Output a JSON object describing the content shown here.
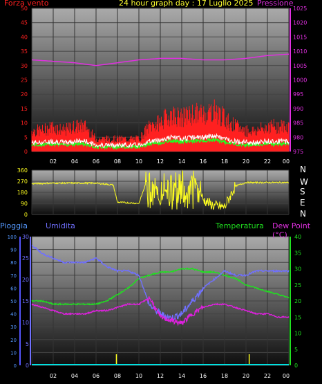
{
  "header": {
    "wind_label": "Forza vento",
    "title": "24 hour graph day : 17 Luglio 2025",
    "pressure_label": "Pressione"
  },
  "dir_labels": [
    "N",
    "W",
    "S",
    "E",
    "N"
  ],
  "lower_header": {
    "rain_label": "Pioggia",
    "humidity_label": "Umidita",
    "temperature_label": "Temperatura",
    "dewpoint_label": "Dew Point (°C)"
  },
  "colors": {
    "wind": "#ff2020",
    "wind_gust": "#ff0000",
    "wind_avg": "#ffffff",
    "wind_low": "#20ff20",
    "pressure": "#e030e0",
    "direction": "#ffff20",
    "humidity": "#7070ff",
    "temperature": "#20e020",
    "dewpoint": "#e020e0",
    "rain": "#00e0e0",
    "rain_axis": "#5555ff"
  },
  "chart_data": [
    {
      "type": "line",
      "name": "wind_pressure",
      "x_ticks": [
        "02",
        "04",
        "06",
        "08",
        "10",
        "12",
        "14",
        "16",
        "18",
        "20",
        "22",
        "00"
      ],
      "left_axis": {
        "ticks": [
          "0",
          "5",
          "10",
          "15",
          "20",
          "25",
          "30",
          "35",
          "40",
          "45",
          "50"
        ],
        "ylim": [
          0,
          50
        ]
      },
      "right_axis": {
        "ticks": [
          "975",
          "980",
          "985",
          "990",
          "995",
          "1000",
          "1005",
          "1010",
          "1015",
          "1020",
          "1025"
        ],
        "ylim": [
          975,
          1025
        ]
      },
      "series": [
        {
          "key": "wind",
          "x": [
            0,
            1,
            2,
            3,
            4,
            5,
            6,
            7,
            8,
            9,
            10,
            11,
            12,
            13,
            14,
            15,
            16,
            17,
            18,
            19,
            20,
            21,
            22,
            23,
            24
          ],
          "values": [
            5,
            5,
            6,
            5,
            6,
            6,
            3,
            3,
            3,
            3,
            3,
            6,
            7,
            9,
            8,
            9,
            9,
            10,
            8,
            6,
            5,
            5,
            6,
            6,
            6
          ]
        },
        {
          "key": "pressure",
          "x": [
            0,
            2,
            4,
            6,
            8,
            10,
            12,
            14,
            16,
            18,
            20,
            22,
            24
          ],
          "values": [
            1007,
            1006.5,
            1006,
            1005,
            1006,
            1007,
            1007.5,
            1007.5,
            1007,
            1007,
            1007.5,
            1008.5,
            1009
          ]
        }
      ]
    },
    {
      "type": "line",
      "name": "wind_direction",
      "x_ticks": [
        "02",
        "04",
        "06",
        "08",
        "10",
        "12",
        "14",
        "16",
        "18",
        "20",
        "22",
        "00"
      ],
      "left_axis": {
        "ticks": [
          "0",
          "90",
          "180",
          "270",
          "360"
        ],
        "ylim": [
          0,
          360
        ]
      },
      "series": [
        {
          "key": "direction",
          "x": [
            0,
            2,
            4,
            6,
            7.6,
            8,
            10,
            11,
            12,
            13,
            14,
            15,
            16,
            17,
            18,
            19,
            20,
            22,
            24
          ],
          "values": [
            250,
            255,
            255,
            255,
            240,
            100,
            90,
            340,
            80,
            320,
            60,
            330,
            120,
            70,
            60,
            230,
            260,
            260,
            260
          ]
        }
      ]
    },
    {
      "type": "line",
      "name": "rain_humidity_temp_dew",
      "x_ticks": [
        "02",
        "04",
        "06",
        "08",
        "10",
        "12",
        "14",
        "16",
        "18",
        "20",
        "22",
        "00"
      ],
      "rain_axis": {
        "ticks": [
          "0",
          "10",
          "20",
          "30",
          "40",
          "50",
          "60",
          "70",
          "80",
          "90",
          "100"
        ],
        "ylim": [
          0,
          100
        ]
      },
      "humidity_axis": {
        "ticks": [
          "0",
          "5",
          "10",
          "15",
          "20",
          "25",
          "30"
        ],
        "ylim": [
          0,
          30
        ]
      },
      "temperature_axis": {
        "ticks": [
          "0",
          "5",
          "10",
          "15",
          "20",
          "25",
          "30",
          "35",
          "40"
        ],
        "ylim": [
          0,
          40
        ]
      },
      "series": [
        {
          "key": "humidity",
          "axis": "humidity_axis",
          "x": [
            0,
            1,
            2,
            3,
            4,
            5,
            6,
            7,
            8,
            9,
            10,
            11,
            12,
            13,
            14,
            15,
            16,
            17,
            18,
            19,
            20,
            21,
            22,
            23,
            24
          ],
          "values": [
            28,
            26,
            25,
            24,
            24,
            24,
            25,
            23,
            22,
            22,
            21,
            14,
            12,
            11,
            12,
            15,
            18,
            20,
            22,
            21,
            21,
            22,
            22,
            22,
            22
          ]
        },
        {
          "key": "temperature",
          "axis": "temperature_axis",
          "x": [
            0,
            1,
            2,
            3,
            4,
            5,
            6,
            7,
            8,
            9,
            10,
            11,
            12,
            13,
            14,
            15,
            16,
            17,
            18,
            19,
            20,
            21,
            22,
            23,
            24
          ],
          "values": [
            20,
            20,
            19,
            19,
            19,
            19,
            19,
            20,
            22,
            24,
            27,
            28,
            29,
            29,
            30,
            30,
            29,
            29,
            28,
            27,
            25,
            24,
            23,
            22,
            21
          ]
        },
        {
          "key": "dewpoint",
          "axis": "temperature_axis",
          "x": [
            0,
            1,
            2,
            3,
            4,
            5,
            6,
            7,
            8,
            9,
            10,
            11,
            12,
            13,
            14,
            15,
            16,
            17,
            18,
            19,
            20,
            21,
            22,
            23,
            24
          ],
          "values": [
            19,
            18,
            17,
            16,
            16,
            16,
            17,
            17,
            18,
            19,
            19,
            21,
            15,
            14,
            13,
            16,
            18,
            19,
            19,
            18,
            17,
            16,
            16,
            15,
            15
          ]
        },
        {
          "key": "rain",
          "axis": "rain_axis",
          "x": [
            0,
            24
          ],
          "values": [
            0,
            0
          ]
        }
      ],
      "markers_x": [
        7.9,
        20.3
      ]
    }
  ]
}
